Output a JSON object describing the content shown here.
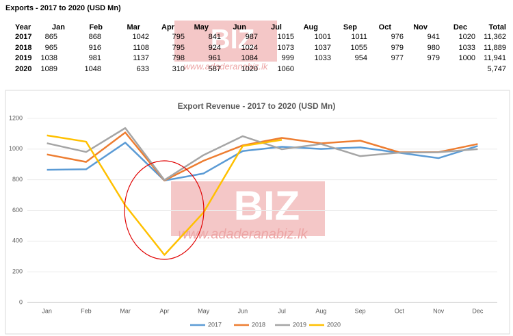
{
  "table": {
    "title": "Exports - 2017 to 2020 (USD Mn)",
    "header": [
      "Year",
      "Jan",
      "Feb",
      "Mar",
      "Apr",
      "May",
      "Jun",
      "Jul",
      "Aug",
      "Sep",
      "Oct",
      "Nov",
      "Dec",
      "Total"
    ],
    "rows": [
      [
        "2017",
        "865",
        "868",
        "1042",
        "795",
        "841",
        "987",
        "1015",
        "1001",
        "1011",
        "976",
        "941",
        "1020",
        "11,362"
      ],
      [
        "2018",
        "965",
        "916",
        "1108",
        "795",
        "924",
        "1024",
        "1073",
        "1037",
        "1055",
        "979",
        "980",
        "1033",
        "11,889"
      ],
      [
        "2019",
        "1038",
        "981",
        "1137",
        "798",
        "961",
        "1084",
        "999",
        "1033",
        "954",
        "977",
        "979",
        "1000",
        "11,941"
      ],
      [
        "2020",
        "1089",
        "1048",
        "633",
        "310",
        "587",
        "1020",
        "1060",
        null,
        null,
        null,
        null,
        null,
        "5,747"
      ]
    ]
  },
  "watermark": {
    "logo": "BIZ",
    "url": "www.adaderanabiz.lk"
  },
  "chart_data": {
    "type": "line",
    "title": "Export Revenue - 2017 to 2020 (USD Mn)",
    "categories": [
      "Jan",
      "Feb",
      "Mar",
      "Apr",
      "May",
      "Jun",
      "Jul",
      "Aug",
      "Sep",
      "Oct",
      "Nov",
      "Dec"
    ],
    "series": [
      {
        "name": "2017",
        "color": "#5b9bd5",
        "values": [
          865,
          868,
          1042,
          795,
          841,
          987,
          1015,
          1001,
          1011,
          976,
          941,
          1020
        ]
      },
      {
        "name": "2018",
        "color": "#ed7d31",
        "values": [
          965,
          916,
          1108,
          795,
          924,
          1024,
          1073,
          1037,
          1055,
          979,
          980,
          1033
        ]
      },
      {
        "name": "2019",
        "color": "#a5a5a5",
        "values": [
          1038,
          981,
          1137,
          798,
          961,
          1084,
          999,
          1033,
          954,
          977,
          979,
          1000
        ]
      },
      {
        "name": "2020",
        "color": "#ffc000",
        "values": [
          1089,
          1048,
          633,
          310,
          587,
          1020,
          1060,
          null,
          null,
          null,
          null,
          null
        ]
      }
    ],
    "ylim": [
      0,
      1200
    ],
    "yticks": [
      0,
      200,
      400,
      600,
      800,
      1000,
      1200
    ],
    "grid": true,
    "legend": "bottom"
  }
}
